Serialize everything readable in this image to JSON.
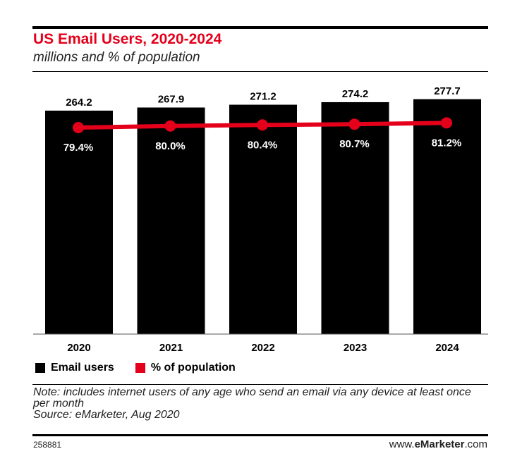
{
  "header": {
    "title": "US Email Users, 2020-2024",
    "subtitle": "millions and % of population"
  },
  "chart_data": {
    "type": "bar",
    "categories": [
      "2020",
      "2021",
      "2022",
      "2023",
      "2024"
    ],
    "series": [
      {
        "name": "Email users",
        "kind": "bar",
        "color": "#000000",
        "values": [
          264.2,
          267.9,
          271.2,
          274.2,
          277.7
        ]
      },
      {
        "name": "% of population",
        "kind": "line",
        "color": "#e4001b",
        "values": [
          79.4,
          80.0,
          80.4,
          80.7,
          81.2
        ],
        "labels": [
          "79.4%",
          "80.0%",
          "80.4%",
          "80.7%",
          "81.2%"
        ]
      }
    ],
    "bar_labels": [
      "264.2",
      "267.9",
      "271.2",
      "274.2",
      "277.7"
    ],
    "ylim": [
      0,
      300
    ],
    "ylim_secondary": [
      0,
      100
    ],
    "grid": false,
    "legend": "bottom-left"
  },
  "legend": {
    "items": [
      {
        "label": "Email users",
        "color": "#000000"
      },
      {
        "label": "% of population",
        "color": "#e4001b"
      }
    ]
  },
  "note": {
    "text": "Note: includes internet users of any age who send an email via any device at least once per month",
    "source": "Source: eMarketer, Aug 2020"
  },
  "footer": {
    "id": "258881",
    "brand_prefix": "www.",
    "brand_bold": "eMarketer",
    "brand_suffix": ".com"
  }
}
